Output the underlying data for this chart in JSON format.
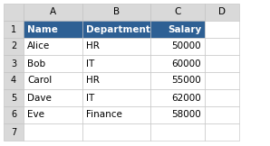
{
  "col_labels": [
    "",
    "A",
    "B",
    "C",
    "D"
  ],
  "row_labels": [
    "1",
    "2",
    "3",
    "4",
    "5",
    "6",
    "7"
  ],
  "headers": [
    "Name",
    "Department",
    "Salary"
  ],
  "rows": [
    [
      "Alice",
      "HR",
      "50000"
    ],
    [
      "Bob",
      "IT",
      "60000"
    ],
    [
      "Carol",
      "HR",
      "55000"
    ],
    [
      "Dave",
      "IT",
      "62000"
    ],
    [
      "Eve",
      "Finance",
      "58000"
    ]
  ],
  "header_bg": "#2E6094",
  "header_fg": "#FFFFFF",
  "cell_bg": "#FFFFFF",
  "cell_fg": "#000000",
  "corner_bg": "#D9D9D9",
  "col_header_bg": "#D9D9D9",
  "row_header_bg": "#D9D9D9",
  "grid_color": "#BFBFBF",
  "outer_bg": "#FFFFFF",
  "font_size": 7.5,
  "row_num_fontsize": 7.0
}
